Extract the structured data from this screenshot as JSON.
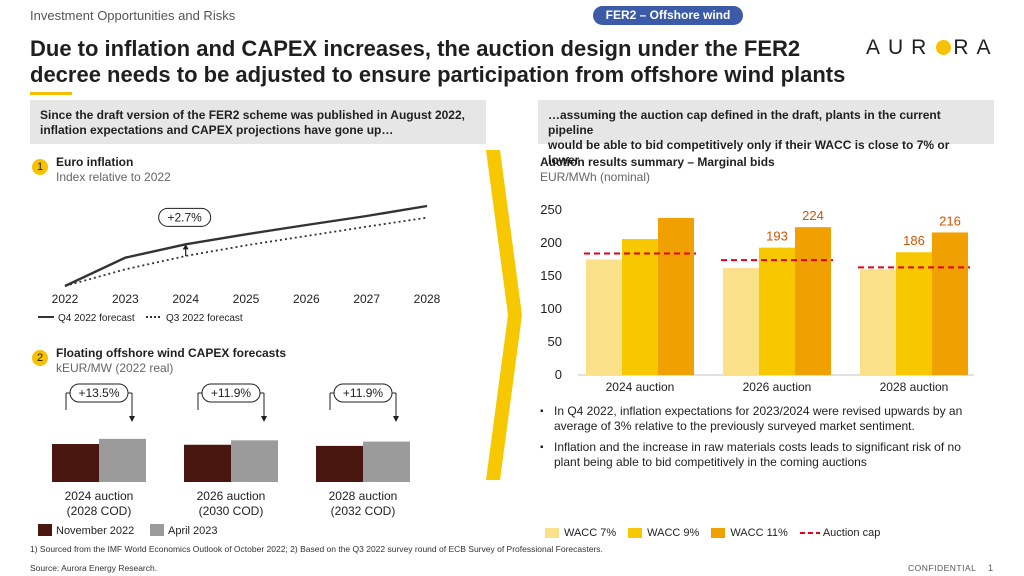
{
  "header": {
    "section_label": "Investment Opportunities and Risks",
    "pill_label": "FER2 – Offshore wind",
    "title_line1": "Due to inflation and CAPEX increases, the auction design under the FER2",
    "title_line2": "decree needs to be adjusted to ensure participation from offshore wind plants",
    "logo_left": "AUR",
    "logo_right": "RA"
  },
  "left": {
    "banner_line1": "Since the draft version of the FER2 scheme was published in August 2022,",
    "banner_line2": "inflation expectations and CAPEX projections have gone up…"
  },
  "right": {
    "banner_line1": "…assuming the auction cap defined in the draft, plants in the current pipeline",
    "banner_line2": "would be able to bid competitively only if their WACC is close to 7% or lower",
    "bullets": [
      "In Q4 2022, inflation expectations for 2023/2024 were revised upwards by an average of 3% relative to the previously surveyed market sentiment.",
      "Inflation and the increase in raw materials costs leads to significant risk of no plant being able to bid competitively in the coming auctions"
    ]
  },
  "chart_data": [
    {
      "type": "line",
      "badge": "1",
      "title": "Euro inflation",
      "subtitle": "Index relative to 2022",
      "x": [
        "2022",
        "2023",
        "2024",
        "2025",
        "2026",
        "2027",
        "2028"
      ],
      "series": [
        {
          "name": "Q4 2022 forecast",
          "style": "solid",
          "color": "#333333",
          "values": [
            100,
            108.5,
            112.5,
            115.5,
            118.3,
            121.0,
            124.0
          ]
        },
        {
          "name": "Q3 2022 forecast",
          "style": "dotted",
          "color": "#333333",
          "values": [
            100,
            105.0,
            109.0,
            112.2,
            115.0,
            117.8,
            120.5
          ]
        }
      ],
      "annotation": "+2.7%",
      "legend_position": "bottom-left"
    },
    {
      "type": "bar",
      "badge": "2",
      "title": "Floating offshore wind CAPEX forecasts",
      "subtitle": "kEUR/MW (2022 real)",
      "categories": [
        [
          "2024 auction",
          "(2028 COD)"
        ],
        [
          "2026 auction",
          "(2030 COD)"
        ],
        [
          "2028 auction",
          "(2032 COD)"
        ]
      ],
      "series": [
        {
          "name": "November 2022",
          "color": "#4a1710",
          "values": [
            100,
            98,
            95
          ]
        },
        {
          "name": "April 2023",
          "color": "#9b9b9b",
          "values": [
            113.5,
            109.7,
            106.3
          ]
        }
      ],
      "annotations": [
        "+13.5%",
        "+11.9%",
        "+11.9%"
      ],
      "legend_position": "bottom-left"
    },
    {
      "type": "bar",
      "title": "Auction results summary – Marginal bids",
      "subtitle": "EUR/MWh (nominal)",
      "categories": [
        "2024 auction",
        "2026 auction",
        "2028 auction"
      ],
      "series": [
        {
          "name": "WACC 7%",
          "color": "#fbe08a",
          "values": [
            175,
            162,
            160
          ]
        },
        {
          "name": "WACC 9%",
          "color": "#f7c800",
          "values": [
            206,
            193,
            186
          ]
        },
        {
          "name": "WACC 11%",
          "color": "#f0a000",
          "values": [
            238,
            224,
            216
          ]
        }
      ],
      "data_labels": {
        "1": [
          "",
          "193",
          "186"
        ],
        "2": [
          "",
          "224",
          "216"
        ]
      },
      "auction_cap": {
        "name": "Auction cap",
        "color": "#e2001a",
        "values": [
          184,
          174,
          163
        ]
      },
      "yticks": [
        0,
        50,
        100,
        150,
        200,
        250
      ],
      "ylim": [
        0,
        250
      ],
      "legend_position": "bottom"
    }
  ],
  "footer": {
    "footnote": "1) Sourced from the IMF World Economics Outlook of October 2022; 2) Based on the Q3 2022 survey round of ECB Survey of Professional Forecasters.",
    "source": "Source: Aurora Energy Research.",
    "confidential": "CONFIDENTIAL",
    "page": "1"
  }
}
